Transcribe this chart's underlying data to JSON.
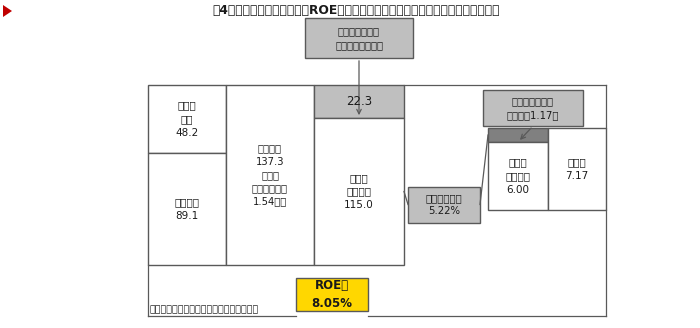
{
  "title": "図4　主要企業（製造業）のROE（実績）：非事業資産を事業投資に充当した場合",
  "title_color": "#c00000",
  "bg_color": "#ffffff",
  "box_border_color": "#595959",
  "box_fill_white": "#ffffff",
  "box_fill_gray_light": "#bfbfbf",
  "box_fill_gray_mid": "#808080",
  "box_fill_yellow": "#ffd700",
  "font_color_dark": "#1a1a1a",
  "footnote": "出典・対象・注：＜図２＞、＜図３＞参照",
  "lbl_debt": "有利子\n負債\n48.2",
  "lbl_equity": "自己資本\n89.1",
  "lbl_invested": "投下資本\n137.3\n（財務\nレバレッジ：\n1.54倍）",
  "lbl_existing": "従前の\n事業資産\n115.0",
  "lbl_new_asset": "22.3",
  "lbl_new_asset_tip": "新規投資により\n獲得した事業資産",
  "lbl_roi": "投資収益率：\n5.22%",
  "lbl_new_income_tip": "新規投資による\n収益（＋1.17）",
  "lbl_net_fig3": "純利益\n＜図３＞\n6.00",
  "lbl_net": "純利益\n7.17",
  "lbl_roe": "ROE：\n8.05%"
}
